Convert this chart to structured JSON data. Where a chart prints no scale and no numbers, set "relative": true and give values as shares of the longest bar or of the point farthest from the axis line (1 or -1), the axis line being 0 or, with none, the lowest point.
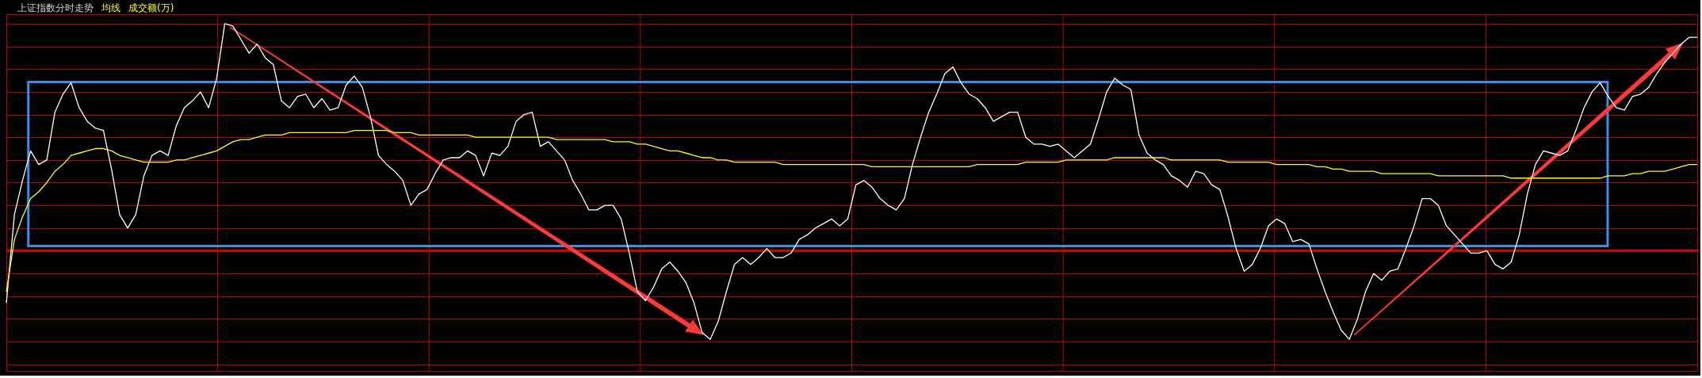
{
  "chart_data": {
    "type": "line",
    "title": "上证指数分时走势",
    "annotations": [
      "成交额(万)"
    ],
    "relative": true,
    "grid": true,
    "line_style": "solid",
    "ref_lines": [
      {
        "axis": "y",
        "value": 0,
        "color": "#cc0000"
      }
    ],
    "categories": [
      null,
      null,
      null,
      null,
      null,
      null,
      null,
      null,
      null,
      null,
      null,
      null,
      null,
      null,
      null,
      null,
      null,
      null,
      null,
      null,
      null,
      null,
      null,
      null,
      null,
      null,
      null,
      null,
      null,
      null,
      null,
      null,
      null,
      null,
      null,
      null,
      null,
      null,
      null,
      null,
      null,
      null,
      null,
      null,
      null,
      null,
      null,
      null,
      null,
      null,
      null,
      null,
      null,
      null,
      null,
      null,
      null,
      null,
      null,
      null,
      null,
      null,
      null,
      null,
      null,
      null,
      null,
      null,
      null,
      null,
      null,
      null,
      null,
      null,
      null,
      null,
      null,
      null,
      null,
      null,
      null,
      null,
      null,
      null,
      null,
      null,
      null,
      null,
      null,
      null,
      null,
      null,
      null,
      null,
      null,
      null,
      null,
      null,
      null,
      null,
      null,
      null,
      null,
      null,
      null,
      null,
      null,
      null,
      null,
      null,
      null,
      null,
      null,
      null,
      null,
      null,
      null,
      null,
      null,
      null,
      null,
      null,
      null,
      null,
      null,
      null,
      null,
      null,
      null,
      null,
      null,
      null,
      null,
      null,
      null,
      null,
      null,
      null,
      null,
      null,
      null,
      null,
      null,
      null,
      null,
      null,
      null,
      null,
      null,
      null,
      null,
      null,
      null,
      null,
      null,
      null,
      null,
      null,
      null,
      null,
      null,
      null,
      null,
      null,
      null,
      null,
      null,
      null,
      null,
      null,
      null,
      null,
      null,
      null,
      null,
      null,
      null,
      null,
      null,
      null,
      null,
      null,
      null,
      null,
      null,
      null,
      null,
      null,
      null,
      null,
      null,
      null,
      null,
      null,
      null,
      null,
      null,
      null,
      null,
      null,
      null,
      null,
      null,
      null,
      null,
      null,
      null,
      null,
      null,
      null
    ],
    "series": [
      {
        "color": "#ffffff",
        "values": [
          -0.23,
          0.16,
          0.31,
          0.44,
          0.38,
          0.4,
          0.61,
          0.69,
          0.74,
          0.63,
          0.57,
          0.54,
          0.53,
          0.36,
          0.16,
          0.1,
          0.16,
          0.33,
          0.42,
          0.44,
          0.42,
          0.55,
          0.63,
          0.66,
          0.7,
          0.63,
          0.76,
          1.0,
          0.99,
          0.93,
          0.87,
          0.91,
          0.85,
          0.82,
          0.66,
          0.63,
          0.68,
          0.69,
          0.63,
          0.67,
          0.62,
          0.63,
          0.73,
          0.77,
          0.72,
          0.59,
          0.42,
          0.38,
          0.35,
          0.31,
          0.2,
          0.25,
          0.27,
          0.34,
          0.4,
          0.41,
          0.41,
          0.44,
          0.42,
          0.33,
          0.43,
          0.42,
          0.46,
          0.57,
          0.6,
          0.61,
          0.46,
          0.48,
          0.44,
          0.4,
          0.31,
          0.25,
          0.18,
          0.18,
          0.2,
          0.2,
          0.14,
          -0.01,
          -0.18,
          -0.22,
          -0.16,
          -0.08,
          -0.05,
          -0.09,
          -0.14,
          -0.23,
          -0.36,
          -0.39,
          -0.31,
          -0.18,
          -0.06,
          -0.03,
          -0.06,
          -0.03,
          0.01,
          -0.03,
          -0.03,
          -0.01,
          0.05,
          0.07,
          0.1,
          0.12,
          0.14,
          0.11,
          0.14,
          0.29,
          0.31,
          0.28,
          0.23,
          0.2,
          0.18,
          0.23,
          0.38,
          0.5,
          0.61,
          0.69,
          0.78,
          0.81,
          0.74,
          0.69,
          0.67,
          0.63,
          0.57,
          0.59,
          0.61,
          0.61,
          0.5,
          0.47,
          0.47,
          0.46,
          0.47,
          0.44,
          0.41,
          0.44,
          0.47,
          0.58,
          0.7,
          0.76,
          0.73,
          0.71,
          0.51,
          0.43,
          0.4,
          0.38,
          0.33,
          0.31,
          0.28,
          0.35,
          0.34,
          0.29,
          0.27,
          0.15,
          0.01,
          -0.09,
          -0.06,
          0.01,
          0.11,
          0.14,
          0.12,
          0.04,
          0.05,
          0.03,
          -0.08,
          -0.18,
          -0.27,
          -0.35,
          -0.39,
          -0.3,
          -0.18,
          -0.1,
          -0.13,
          -0.09,
          -0.08,
          0.01,
          0.11,
          0.23,
          0.23,
          0.2,
          0.11,
          0.07,
          0.03,
          -0.01,
          -0.01,
          0.0,
          -0.06,
          -0.08,
          -0.05,
          0.07,
          0.25,
          0.38,
          0.44,
          0.43,
          0.42,
          0.44,
          0.53,
          0.63,
          0.7,
          0.74,
          0.68,
          0.63,
          0.62,
          0.68,
          0.69,
          0.72,
          0.78,
          0.83,
          0.87,
          0.91,
          0.94,
          0.94
        ]
      },
      {
        "name": "均线",
        "color": "#ffff00",
        "values": [
          -0.18,
          0.05,
          0.15,
          0.23,
          0.26,
          0.3,
          0.35,
          0.38,
          0.42,
          0.43,
          0.44,
          0.45,
          0.45,
          0.44,
          0.42,
          0.41,
          0.4,
          0.39,
          0.39,
          0.39,
          0.39,
          0.4,
          0.4,
          0.41,
          0.42,
          0.43,
          0.44,
          0.46,
          0.48,
          0.49,
          0.49,
          0.5,
          0.51,
          0.51,
          0.51,
          0.52,
          0.52,
          0.52,
          0.52,
          0.52,
          0.52,
          0.52,
          0.52,
          0.53,
          0.53,
          0.53,
          0.53,
          0.53,
          0.52,
          0.52,
          0.52,
          0.51,
          0.51,
          0.51,
          0.51,
          0.51,
          0.51,
          0.51,
          0.5,
          0.5,
          0.5,
          0.5,
          0.5,
          0.5,
          0.5,
          0.5,
          0.5,
          0.5,
          0.49,
          0.49,
          0.49,
          0.49,
          0.49,
          0.49,
          0.49,
          0.48,
          0.48,
          0.48,
          0.47,
          0.47,
          0.46,
          0.45,
          0.44,
          0.44,
          0.43,
          0.42,
          0.41,
          0.41,
          0.4,
          0.4,
          0.39,
          0.39,
          0.39,
          0.39,
          0.39,
          0.39,
          0.38,
          0.38,
          0.38,
          0.38,
          0.38,
          0.38,
          0.38,
          0.38,
          0.38,
          0.38,
          0.38,
          0.37,
          0.37,
          0.37,
          0.37,
          0.37,
          0.37,
          0.37,
          0.37,
          0.37,
          0.37,
          0.37,
          0.37,
          0.37,
          0.38,
          0.38,
          0.38,
          0.38,
          0.38,
          0.38,
          0.39,
          0.39,
          0.39,
          0.39,
          0.39,
          0.4,
          0.4,
          0.4,
          0.4,
          0.4,
          0.4,
          0.41,
          0.41,
          0.41,
          0.41,
          0.41,
          0.41,
          0.41,
          0.4,
          0.4,
          0.4,
          0.4,
          0.4,
          0.4,
          0.4,
          0.39,
          0.39,
          0.39,
          0.39,
          0.39,
          0.39,
          0.38,
          0.38,
          0.38,
          0.38,
          0.38,
          0.37,
          0.37,
          0.36,
          0.36,
          0.35,
          0.35,
          0.35,
          0.35,
          0.34,
          0.34,
          0.34,
          0.34,
          0.34,
          0.34,
          0.34,
          0.33,
          0.33,
          0.33,
          0.33,
          0.33,
          0.33,
          0.33,
          0.33,
          0.33,
          0.32,
          0.32,
          0.32,
          0.32,
          0.32,
          0.32,
          0.32,
          0.32,
          0.32,
          0.32,
          0.32,
          0.32,
          0.33,
          0.33,
          0.33,
          0.34,
          0.34,
          0.35,
          0.35,
          0.35,
          0.36,
          0.37,
          0.38,
          0.38
        ]
      }
    ]
  }
}
